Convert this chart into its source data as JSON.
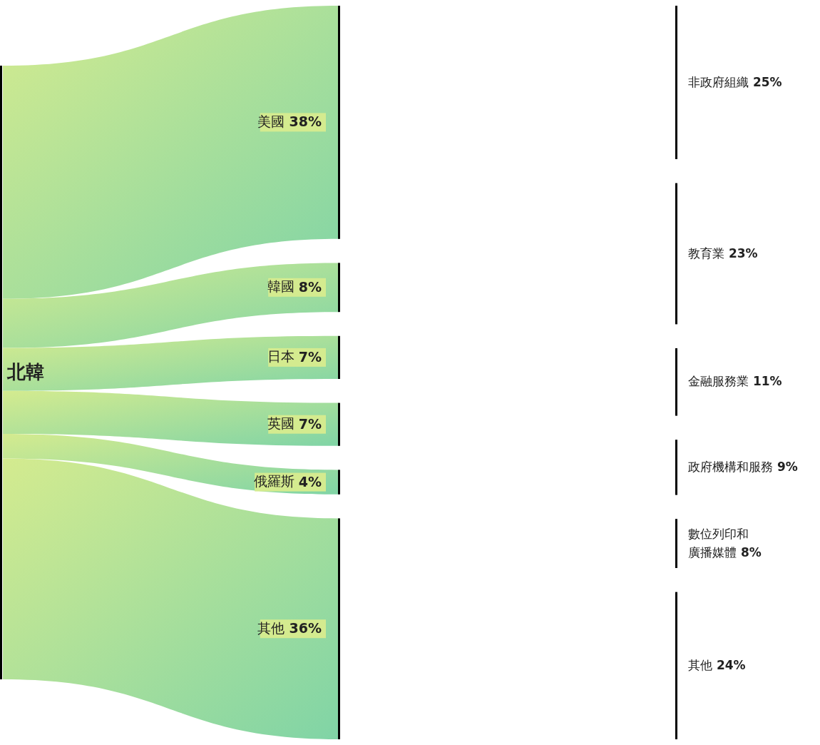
{
  "chart_data": {
    "type": "other",
    "categories": [
      "北韓",
      "美國",
      "韓國",
      "日本",
      "英國",
      "俄羅斯",
      "其他",
      "非政府組織",
      "教育業",
      "金融服務業",
      "政府機構和服務",
      "數位列印和廣播媒體",
      "其他"
    ],
    "series": [
      {
        "values": [
          null,
          38,
          8,
          7,
          7,
          4,
          36,
          null,
          null,
          null,
          null,
          null,
          null
        ],
        "value_labels": [
          null,
          "38%",
          "8%",
          "7%",
          "7%",
          "4%",
          "36%",
          null,
          null,
          null,
          null,
          null,
          null
        ]
      },
      {
        "values": [
          null,
          null,
          null,
          null,
          null,
          null,
          null,
          25,
          23,
          11,
          9,
          8,
          24
        ],
        "value_labels": [
          null,
          null,
          null,
          null,
          null,
          null,
          null,
          "25%",
          "23%",
          "11%",
          "9%",
          "8%",
          "24%"
        ]
      }
    ]
  }
}
